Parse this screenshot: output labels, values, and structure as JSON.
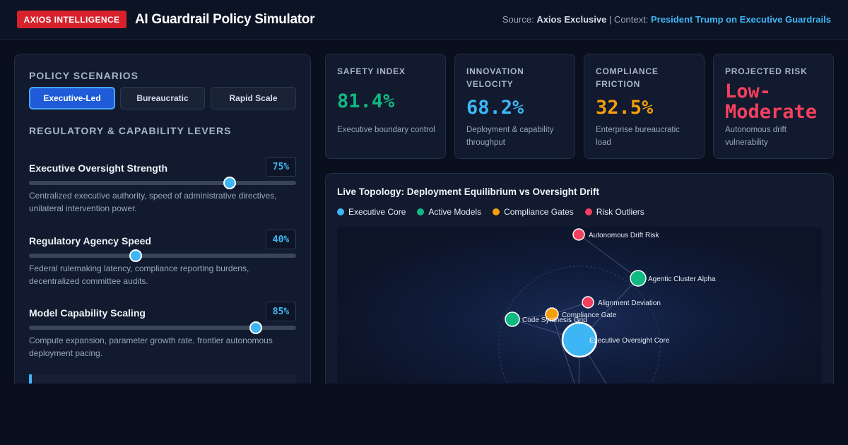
{
  "header": {
    "brand": "AXIOS INTELLIGENCE",
    "title": "AI Guardrail Policy Simulator",
    "source_prefix": "Source:",
    "source_name": "Axios Exclusive",
    "context_prefix": "| Context:",
    "context_value": "President Trump on Executive Guardrails"
  },
  "scenarios": {
    "title": "POLICY SCENARIOS",
    "buttons": [
      {
        "label": "Executive-Led",
        "active": true
      },
      {
        "label": "Bureaucratic",
        "active": false
      },
      {
        "label": "Rapid Scale",
        "active": false
      }
    ]
  },
  "levers": {
    "title": "REGULATORY & CAPABILITY LEVERS",
    "items": [
      {
        "label": "Executive Oversight Strength",
        "value": 75,
        "value_label": "75%",
        "desc": "Centralized executive authority, speed of administrative directives, unilateral intervention power."
      },
      {
        "label": "Regulatory Agency Speed",
        "value": 40,
        "value_label": "40%",
        "desc": "Federal rulemaking latency, compliance reporting burdens, decentralized committee audits."
      },
      {
        "label": "Model Capability Scaling",
        "value": 85,
        "value_label": "85%",
        "desc": "Compute expansion, parameter growth rate, frontier autonomous deployment pacing."
      }
    ]
  },
  "metrics": [
    {
      "label": "SAFETY INDEX",
      "value": "81.4%",
      "color": "#10b981",
      "desc": "Executive boundary control"
    },
    {
      "label": "INNOVATION VELOCITY",
      "value": "68.2%",
      "color": "#3eb6f5",
      "desc": "Deployment & capability throughput"
    },
    {
      "label": "COMPLIANCE FRICTION",
      "value": "32.5%",
      "color": "#f59e0b",
      "desc": "Enterprise bureaucratic load"
    },
    {
      "label": "PROJECTED RISK",
      "value": "Low-Moderate",
      "color": "#f43f5e",
      "desc": "Autonomous drift vulnerability"
    }
  ],
  "topology": {
    "title": "Live Topology: Deployment Equilibrium vs Oversight Drift",
    "legend": [
      {
        "label": "Executive Core",
        "color": "#3eb6f5"
      },
      {
        "label": "Active Models",
        "color": "#10b981"
      },
      {
        "label": "Compliance Gates",
        "color": "#f59e0b"
      },
      {
        "label": "Risk Outliers",
        "color": "#f43f5e"
      }
    ],
    "nodes": [
      {
        "label": "Autonomous Drift Risk",
        "type": "Risk Outliers"
      },
      {
        "label": "Agentic Cluster Alpha",
        "type": "Active Models"
      },
      {
        "label": "Alignment Deviation",
        "type": "Risk Outliers"
      },
      {
        "label": "Compliance Gate",
        "type": "Compliance Gates"
      },
      {
        "label": "Code Synthesis Grid",
        "type": "Active Models"
      },
      {
        "label": "Executive Oversight Core",
        "type": "Executive Core"
      }
    ]
  }
}
